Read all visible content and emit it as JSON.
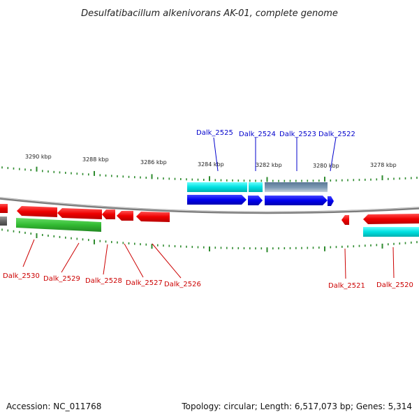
{
  "title": "Desulfatibacillum alkenivorans AK-01, complete genome",
  "footer": {
    "accession": "Accession: NC_011768",
    "summary": "Topology: circular; Length: 6,517,073 bp; Genes: 5,314"
  },
  "colors": {
    "backbone": "#808080",
    "tick": "#2e8b2e",
    "forward_cds": "#0000ee",
    "forward_other": "#00d8d8",
    "forward_pseudo": "#5f7f9f",
    "reverse_cds": "#ee0000",
    "reverse_other": "#33bb33",
    "reverse_pseudo": "#666666",
    "label_forward": "#0000cc",
    "label_reverse": "#cc0000"
  },
  "scale_labels": [
    "3290 kbp",
    "3288 kbp",
    "3286 kbp",
    "3284 kbp",
    "3282 kbp",
    "3280 kbp",
    "3278 kbp"
  ],
  "genes_forward": [
    "Dalk_2525",
    "Dalk_2524",
    "Dalk_2523",
    "Dalk_2522"
  ],
  "genes_reverse": [
    "Dalk_2530",
    "Dalk_2529",
    "Dalk_2528",
    "Dalk_2527",
    "Dalk_2526",
    "Dalk_2521",
    "Dalk_2520"
  ]
}
